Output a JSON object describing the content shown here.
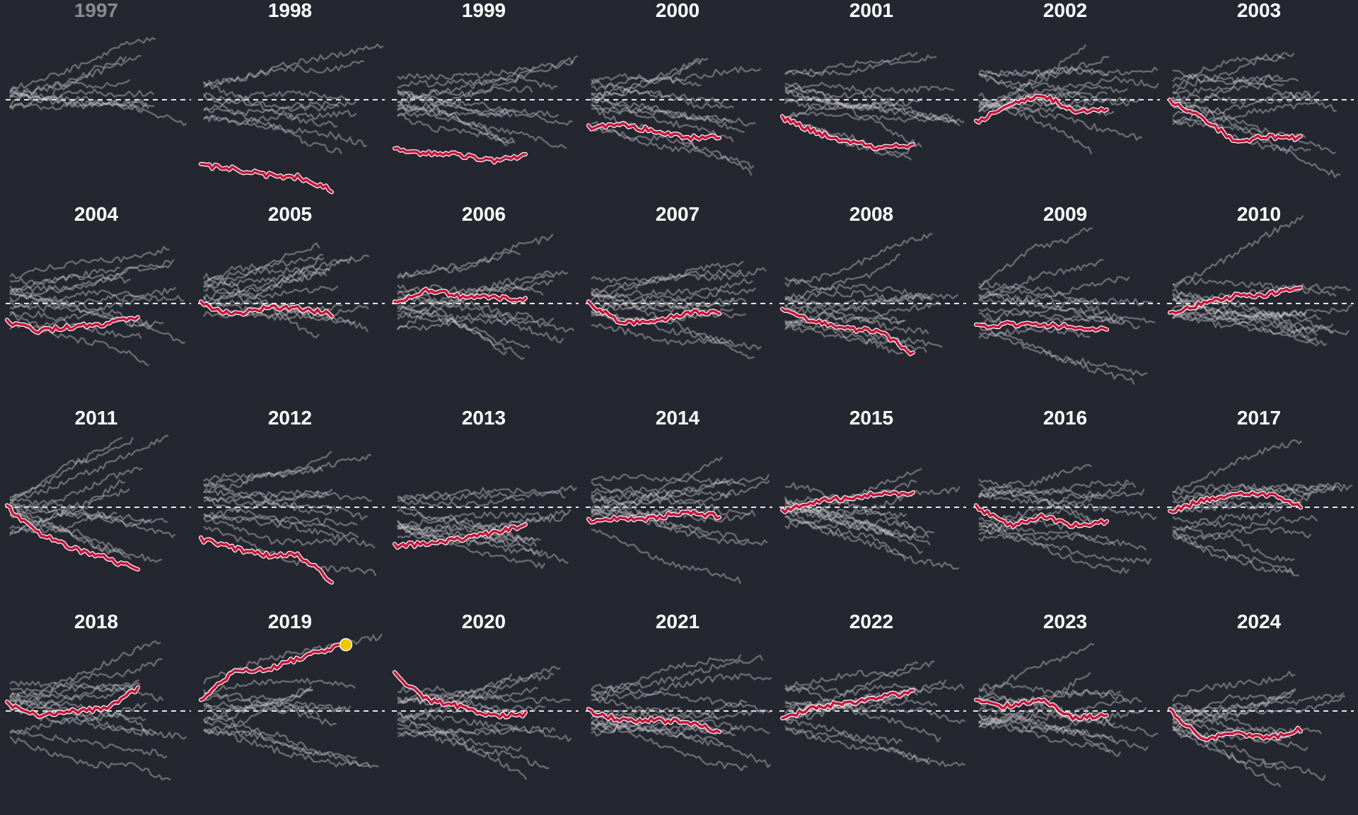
{
  "colors": {
    "background": "#252730",
    "title_text": "#ffffff",
    "title_text_dim": "#8a8c92",
    "baseline": "#e8e8e8",
    "context_series": "#c9c9cb",
    "highlight_series": "#c4163c",
    "highlight_outline": "#ffffff",
    "current_marker": "#f2c300"
  },
  "chart_data": {
    "type": "line",
    "layout": "small-multiples",
    "baseline": "dashed",
    "grid": false,
    "panels": [
      {
        "year": "1997",
        "dim": true,
        "seed": 1997,
        "n_context": 9,
        "highlight": null
      },
      {
        "year": "1998",
        "seed": 1998,
        "n_context": 9,
        "highlight": [
          -0.72,
          -0.75,
          -0.82,
          -0.84,
          -0.98
        ]
      },
      {
        "year": "1999",
        "seed": 1999,
        "n_context": 13,
        "highlight": [
          -0.55,
          -0.58,
          -0.6,
          -0.66,
          -0.6
        ]
      },
      {
        "year": "2000",
        "seed": 2000,
        "n_context": 13,
        "highlight": [
          -0.3,
          -0.28,
          -0.33,
          -0.42,
          -0.4
        ]
      },
      {
        "year": "2001",
        "seed": 2001,
        "n_context": 13,
        "highlight": [
          -0.2,
          -0.35,
          -0.45,
          -0.52,
          -0.5
        ]
      },
      {
        "year": "2002",
        "seed": 2002,
        "n_context": 13,
        "highlight": [
          -0.25,
          -0.05,
          0.06,
          -0.12,
          -0.1
        ]
      },
      {
        "year": "2003",
        "seed": 2003,
        "n_context": 13,
        "highlight": [
          -0.02,
          -0.2,
          -0.45,
          -0.4,
          -0.42
        ]
      },
      {
        "year": "2004",
        "seed": 2004,
        "n_context": 13,
        "highlight": [
          -0.2,
          -0.3,
          -0.25,
          -0.22,
          -0.15
        ]
      },
      {
        "year": "2005",
        "seed": 2005,
        "n_context": 13,
        "highlight": [
          0.0,
          -0.12,
          -0.05,
          -0.05,
          -0.12
        ]
      },
      {
        "year": "2006",
        "seed": 2006,
        "n_context": 13,
        "highlight": [
          0.0,
          0.15,
          0.08,
          0.06,
          0.05
        ]
      },
      {
        "year": "2007",
        "seed": 2007,
        "n_context": 13,
        "highlight": [
          0.0,
          -0.2,
          -0.2,
          -0.1,
          -0.1
        ]
      },
      {
        "year": "2008",
        "seed": 2008,
        "n_context": 13,
        "highlight": [
          -0.08,
          -0.2,
          -0.28,
          -0.3,
          -0.55
        ]
      },
      {
        "year": "2009",
        "seed": 2009,
        "n_context": 13,
        "highlight": [
          -0.25,
          -0.22,
          -0.24,
          -0.25,
          -0.28
        ]
      },
      {
        "year": "2010",
        "seed": 2010,
        "n_context": 13,
        "highlight": [
          -0.12,
          0.0,
          0.08,
          0.1,
          0.2
        ]
      },
      {
        "year": "2011",
        "seed": 2011,
        "n_context": 13,
        "highlight": [
          0.0,
          -0.28,
          -0.45,
          -0.55,
          -0.68
        ]
      },
      {
        "year": "2012",
        "seed": 2012,
        "n_context": 13,
        "highlight": [
          -0.35,
          -0.45,
          -0.52,
          -0.52,
          -0.8
        ]
      },
      {
        "year": "2013",
        "seed": 2013,
        "n_context": 13,
        "highlight": [
          -0.42,
          -0.4,
          -0.35,
          -0.28,
          -0.2
        ]
      },
      {
        "year": "2014",
        "seed": 2014,
        "n_context": 13,
        "highlight": [
          -0.15,
          -0.12,
          -0.12,
          -0.05,
          -0.1
        ]
      },
      {
        "year": "2015",
        "seed": 2015,
        "n_context": 13,
        "highlight": [
          -0.05,
          0.06,
          0.1,
          0.15,
          0.14
        ]
      },
      {
        "year": "2016",
        "seed": 2016,
        "n_context": 13,
        "highlight": [
          0.0,
          -0.2,
          -0.1,
          -0.2,
          -0.15
        ]
      },
      {
        "year": "2017",
        "seed": 2017,
        "n_context": 13,
        "highlight": [
          -0.06,
          0.08,
          0.15,
          0.14,
          0.02
        ]
      },
      {
        "year": "2018",
        "seed": 2018,
        "n_context": 13,
        "highlight": [
          0.08,
          -0.05,
          0.0,
          0.02,
          0.25
        ]
      },
      {
        "year": "2019",
        "seed": 2019,
        "n_context": 13,
        "highlight": [
          0.1,
          0.45,
          0.45,
          0.6,
          0.7
        ],
        "current": true
      },
      {
        "year": "2020",
        "seed": 2020,
        "n_context": 13,
        "highlight": [
          0.4,
          0.12,
          0.05,
          -0.05,
          -0.03
        ]
      },
      {
        "year": "2021",
        "seed": 2021,
        "n_context": 13,
        "highlight": [
          0.0,
          -0.1,
          -0.1,
          -0.12,
          -0.22
        ]
      },
      {
        "year": "2022",
        "seed": 2022,
        "n_context": 13,
        "highlight": [
          -0.1,
          0.05,
          0.08,
          0.16,
          0.2
        ]
      },
      {
        "year": "2023",
        "seed": 2023,
        "n_context": 13,
        "highlight": [
          0.1,
          0.05,
          0.12,
          -0.08,
          -0.05
        ]
      },
      {
        "year": "2024",
        "seed": 2024,
        "n_context": 13,
        "highlight": [
          0.0,
          -0.3,
          -0.25,
          -0.3,
          -0.2
        ]
      }
    ]
  }
}
